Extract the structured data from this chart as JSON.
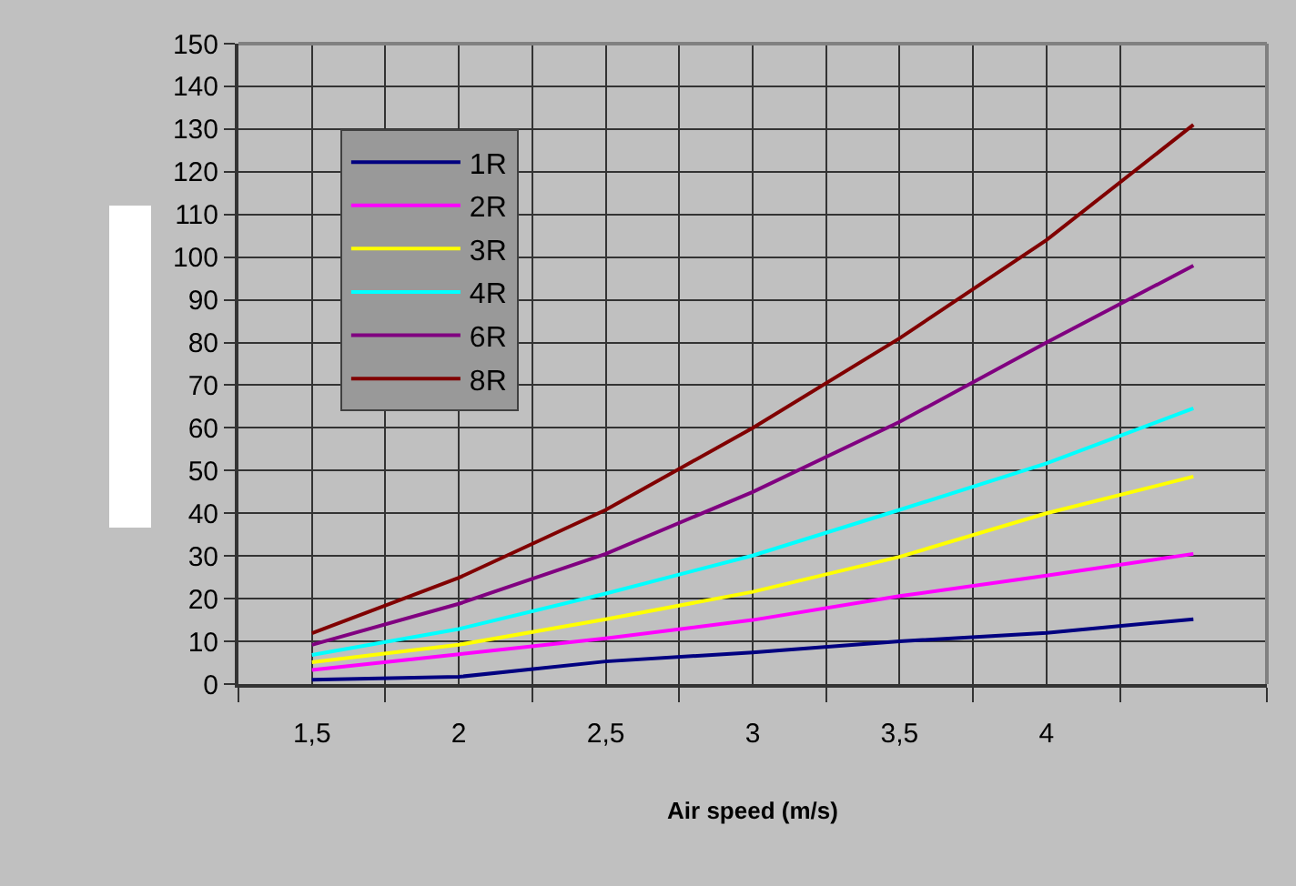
{
  "chart_data": {
    "type": "line",
    "xlabel": "Air speed (m/s)",
    "categories": [
      "1,5",
      "2",
      "2,5",
      "3",
      "3,5",
      "4",
      null
    ],
    "series": [
      {
        "name": "1R",
        "color": "#000080",
        "values": [
          1,
          1.7,
          5.3,
          7.4,
          10,
          12,
          15.2
        ]
      },
      {
        "name": "2R",
        "color": "#ff00ff",
        "values": [
          3.3,
          7,
          10.7,
          15,
          20.6,
          25.4,
          30.5
        ]
      },
      {
        "name": "3R",
        "color": "#ffff00",
        "values": [
          5.1,
          9.2,
          15.2,
          21.6,
          29.8,
          40,
          48.6
        ]
      },
      {
        "name": "4R",
        "color": "#00ffff",
        "values": [
          6.8,
          12.9,
          21.2,
          30.1,
          40.8,
          51.7,
          64.6
        ]
      },
      {
        "name": "6R",
        "color": "#800080",
        "values": [
          9.2,
          18.8,
          30.5,
          45,
          61.4,
          80,
          98
        ]
      },
      {
        "name": "8R",
        "color": "#800000",
        "values": [
          11.9,
          24.9,
          40.8,
          60,
          81,
          104,
          131
        ]
      }
    ],
    "ylim": [
      0,
      150
    ],
    "yticks": [
      0,
      10,
      20,
      30,
      40,
      50,
      60,
      70,
      80,
      90,
      100,
      110,
      120,
      130,
      140,
      150
    ],
    "grid": true,
    "legend": "top left"
  }
}
